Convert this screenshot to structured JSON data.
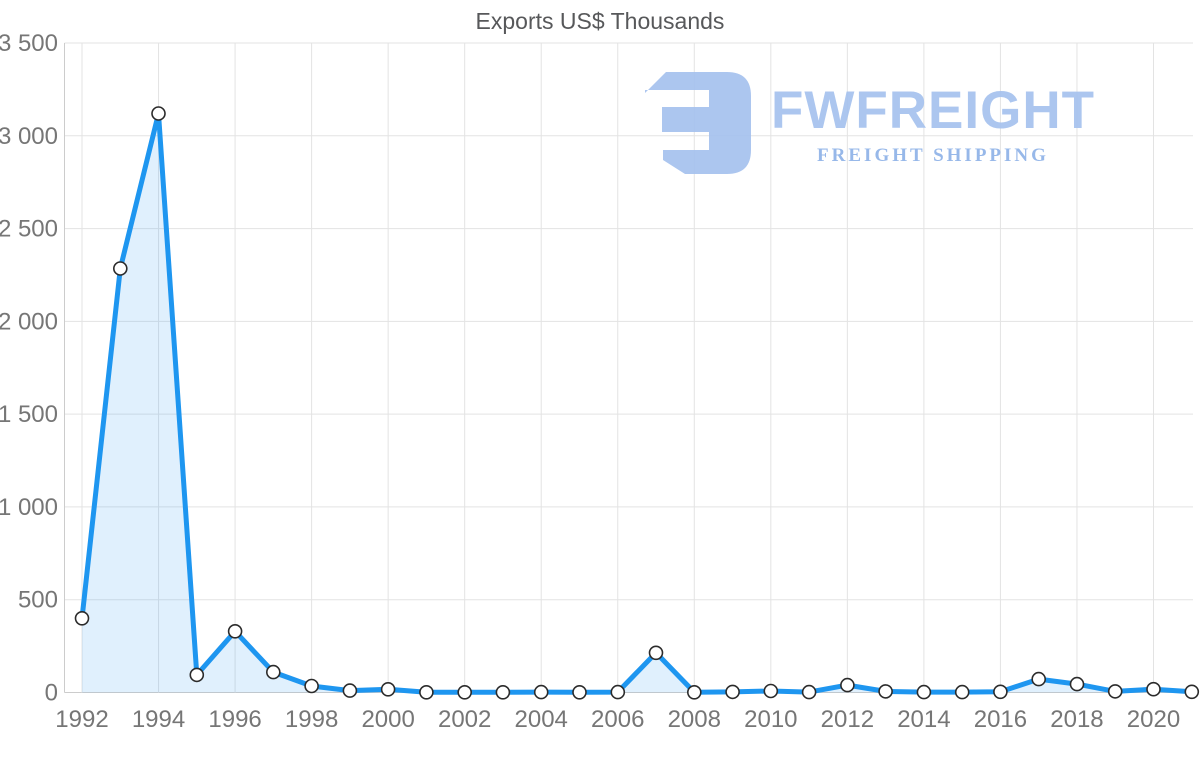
{
  "page": {
    "background": "#ffffff"
  },
  "watermark": {
    "wordmark": "FWFREIGHT",
    "tagline": "FREIGHT SHIPPING",
    "logo_color": "#a6c2ee",
    "tagline_color": "#8fb2e8"
  },
  "chart_data": {
    "type": "area",
    "title": "Exports US$ Thousands",
    "xlabel": "",
    "ylabel": "",
    "x": [
      1992,
      1993,
      1994,
      1995,
      1996,
      1997,
      1998,
      1999,
      2000,
      2001,
      2002,
      2003,
      2004,
      2005,
      2006,
      2007,
      2008,
      2009,
      2010,
      2011,
      2012,
      2013,
      2014,
      2015,
      2016,
      2017,
      2018,
      2019,
      2020,
      2021
    ],
    "values": [
      400,
      2285,
      3120,
      95,
      330,
      110,
      35,
      10,
      17,
      1,
      1,
      1,
      2,
      1,
      2,
      214,
      1,
      3,
      8,
      2,
      40,
      6,
      2,
      2,
      4,
      72,
      45,
      6,
      18,
      4
    ],
    "series_name": "Exports US$ Thousands",
    "ylim": [
      0,
      3500
    ],
    "xlim": [
      1992,
      2021
    ],
    "y_ticks": [
      {
        "v": 0,
        "label": "0"
      },
      {
        "v": 500,
        "label": "500"
      },
      {
        "v": 1000,
        "label": "1 000"
      },
      {
        "v": 1500,
        "label": "1 500"
      },
      {
        "v": 2000,
        "label": "2 000"
      },
      {
        "v": 2500,
        "label": "2 500"
      },
      {
        "v": 3000,
        "label": "3 000"
      },
      {
        "v": 3500,
        "label": "3 500"
      }
    ],
    "x_ticks": [
      1992,
      1994,
      1996,
      1998,
      2000,
      2002,
      2004,
      2006,
      2008,
      2010,
      2012,
      2014,
      2016,
      2018,
      2020
    ],
    "grid": "both",
    "legend": "none",
    "style": {
      "line_color": "#1e96f0",
      "line_width": 5,
      "area_fill": "rgba(33,150,243,0.14)",
      "marker_fill": "#ffffff",
      "marker_stroke": "#2b2b2b",
      "marker_radius": 6.5,
      "grid_color": "#e3e3e3",
      "axis_line_color": "#cccccc",
      "tick_label_color": "#767676",
      "title_color": "#57585a"
    }
  }
}
